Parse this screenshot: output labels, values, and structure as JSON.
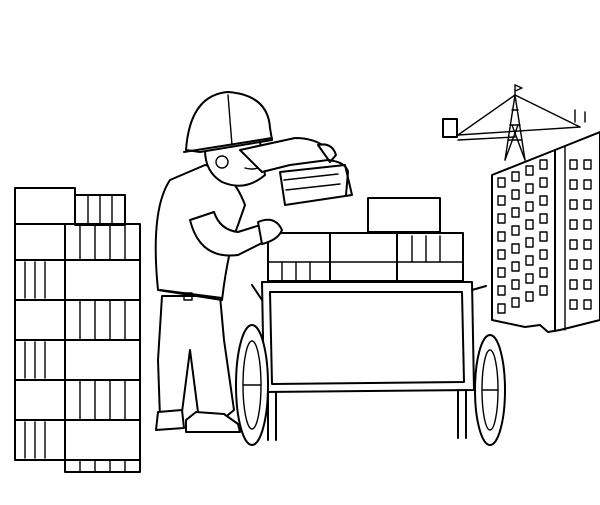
{
  "image": {
    "style": "black-and-white line art coloring page",
    "colors": {
      "ink": "#000000",
      "paper": "#ffffff"
    }
  }
}
